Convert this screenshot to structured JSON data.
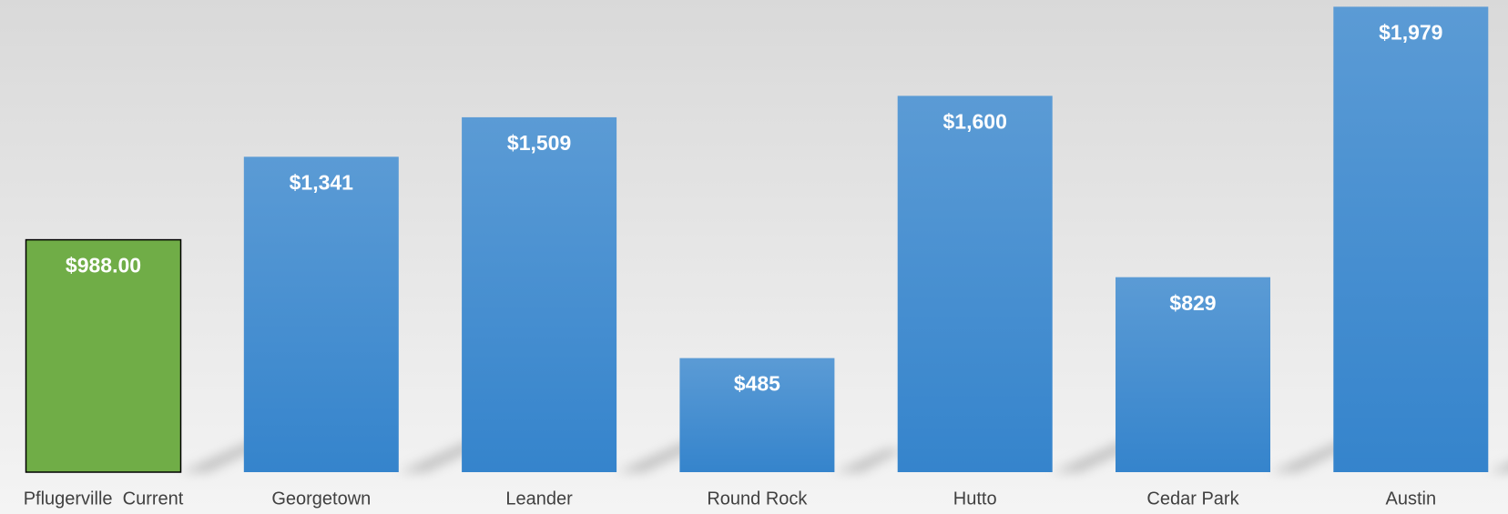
{
  "chart_data": {
    "type": "bar",
    "categories": [
      "Pflugerville  Current",
      "Georgetown",
      "Leander",
      "Round Rock",
      "Hutto",
      "Cedar Park",
      "Austin"
    ],
    "values": [
      988,
      1341,
      1509,
      485,
      1600,
      829,
      1979
    ],
    "value_labels": [
      "$988.00",
      "$1,341",
      "$1,509",
      "$485",
      "$1,600",
      "$829",
      "$1,979"
    ],
    "colors": [
      "#70ad47",
      "#4a90d9",
      "#4a90d9",
      "#4a90d9",
      "#4a90d9",
      "#4a90d9",
      "#4a90d9"
    ]
  }
}
